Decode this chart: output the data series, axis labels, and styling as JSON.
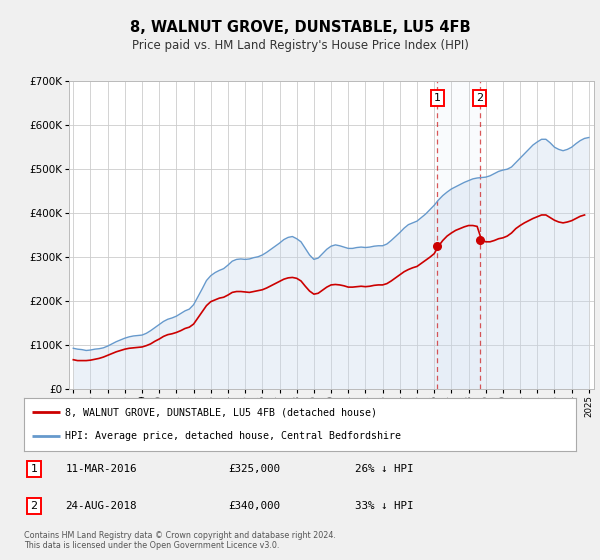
{
  "title": "8, WALNUT GROVE, DUNSTABLE, LU5 4FB",
  "subtitle": "Price paid vs. HM Land Registry's House Price Index (HPI)",
  "title_fontsize": 10.5,
  "subtitle_fontsize": 8.5,
  "background_color": "#f0f0f0",
  "plot_bg_color": "#ffffff",
  "grid_color": "#cccccc",
  "hpi_color": "#6699cc",
  "hpi_fill_color": "#c8d8ec",
  "price_color": "#cc0000",
  "ylim": [
    0,
    700000
  ],
  "yticks": [
    0,
    100000,
    200000,
    300000,
    400000,
    500000,
    600000,
    700000
  ],
  "ytick_labels": [
    "£0",
    "£100K",
    "£200K",
    "£300K",
    "£400K",
    "£500K",
    "£600K",
    "£700K"
  ],
  "sale1": {
    "date_num": 2016.19,
    "price": 325000,
    "label": "1",
    "date_str": "11-MAR-2016",
    "pct": "26%",
    "price_str": "£325,000"
  },
  "sale2": {
    "date_num": 2018.65,
    "price": 340000,
    "label": "2",
    "date_str": "24-AUG-2018",
    "pct": "33%",
    "price_str": "£340,000"
  },
  "legend_line1": "8, WALNUT GROVE, DUNSTABLE, LU5 4FB (detached house)",
  "legend_line2": "HPI: Average price, detached house, Central Bedfordshire",
  "footer1": "Contains HM Land Registry data © Crown copyright and database right 2024.",
  "footer2": "This data is licensed under the Open Government Licence v3.0.",
  "hpi_data": [
    [
      1995.0,
      93000
    ],
    [
      1995.25,
      91000
    ],
    [
      1995.5,
      90000
    ],
    [
      1995.75,
      88000
    ],
    [
      1996.0,
      89000
    ],
    [
      1996.25,
      91000
    ],
    [
      1996.5,
      92000
    ],
    [
      1996.75,
      94000
    ],
    [
      1997.0,
      98000
    ],
    [
      1997.25,
      103000
    ],
    [
      1997.5,
      108000
    ],
    [
      1997.75,
      112000
    ],
    [
      1998.0,
      116000
    ],
    [
      1998.25,
      119000
    ],
    [
      1998.5,
      121000
    ],
    [
      1998.75,
      122000
    ],
    [
      1999.0,
      123000
    ],
    [
      1999.25,
      127000
    ],
    [
      1999.5,
      133000
    ],
    [
      1999.75,
      140000
    ],
    [
      2000.0,
      147000
    ],
    [
      2000.25,
      154000
    ],
    [
      2000.5,
      159000
    ],
    [
      2000.75,
      162000
    ],
    [
      2001.0,
      166000
    ],
    [
      2001.25,
      172000
    ],
    [
      2001.5,
      178000
    ],
    [
      2001.75,
      182000
    ],
    [
      2002.0,
      192000
    ],
    [
      2002.25,
      210000
    ],
    [
      2002.5,
      228000
    ],
    [
      2002.75,
      247000
    ],
    [
      2003.0,
      258000
    ],
    [
      2003.25,
      265000
    ],
    [
      2003.5,
      270000
    ],
    [
      2003.75,
      274000
    ],
    [
      2004.0,
      282000
    ],
    [
      2004.25,
      291000
    ],
    [
      2004.5,
      295000
    ],
    [
      2004.75,
      296000
    ],
    [
      2005.0,
      295000
    ],
    [
      2005.25,
      296000
    ],
    [
      2005.5,
      299000
    ],
    [
      2005.75,
      301000
    ],
    [
      2006.0,
      305000
    ],
    [
      2006.25,
      311000
    ],
    [
      2006.5,
      318000
    ],
    [
      2006.75,
      325000
    ],
    [
      2007.0,
      332000
    ],
    [
      2007.25,
      340000
    ],
    [
      2007.5,
      345000
    ],
    [
      2007.75,
      347000
    ],
    [
      2008.0,
      342000
    ],
    [
      2008.25,
      335000
    ],
    [
      2008.5,
      320000
    ],
    [
      2008.75,
      305000
    ],
    [
      2009.0,
      295000
    ],
    [
      2009.25,
      298000
    ],
    [
      2009.5,
      308000
    ],
    [
      2009.75,
      318000
    ],
    [
      2010.0,
      325000
    ],
    [
      2010.25,
      328000
    ],
    [
      2010.5,
      326000
    ],
    [
      2010.75,
      323000
    ],
    [
      2011.0,
      320000
    ],
    [
      2011.25,
      320000
    ],
    [
      2011.5,
      322000
    ],
    [
      2011.75,
      323000
    ],
    [
      2012.0,
      322000
    ],
    [
      2012.25,
      323000
    ],
    [
      2012.5,
      325000
    ],
    [
      2012.75,
      326000
    ],
    [
      2013.0,
      326000
    ],
    [
      2013.25,
      330000
    ],
    [
      2013.5,
      338000
    ],
    [
      2013.75,
      347000
    ],
    [
      2014.0,
      356000
    ],
    [
      2014.25,
      366000
    ],
    [
      2014.5,
      374000
    ],
    [
      2014.75,
      378000
    ],
    [
      2015.0,
      382000
    ],
    [
      2015.25,
      390000
    ],
    [
      2015.5,
      398000
    ],
    [
      2015.75,
      408000
    ],
    [
      2016.0,
      418000
    ],
    [
      2016.25,
      430000
    ],
    [
      2016.5,
      440000
    ],
    [
      2016.75,
      448000
    ],
    [
      2017.0,
      455000
    ],
    [
      2017.25,
      460000
    ],
    [
      2017.5,
      465000
    ],
    [
      2017.75,
      470000
    ],
    [
      2018.0,
      474000
    ],
    [
      2018.25,
      478000
    ],
    [
      2018.5,
      480000
    ],
    [
      2018.75,
      481000
    ],
    [
      2019.0,
      482000
    ],
    [
      2019.25,
      485000
    ],
    [
      2019.5,
      490000
    ],
    [
      2019.75,
      495000
    ],
    [
      2020.0,
      498000
    ],
    [
      2020.25,
      500000
    ],
    [
      2020.5,
      505000
    ],
    [
      2020.75,
      515000
    ],
    [
      2021.0,
      525000
    ],
    [
      2021.25,
      535000
    ],
    [
      2021.5,
      545000
    ],
    [
      2021.75,
      555000
    ],
    [
      2022.0,
      562000
    ],
    [
      2022.25,
      568000
    ],
    [
      2022.5,
      568000
    ],
    [
      2022.75,
      560000
    ],
    [
      2023.0,
      550000
    ],
    [
      2023.25,
      545000
    ],
    [
      2023.5,
      542000
    ],
    [
      2023.75,
      545000
    ],
    [
      2024.0,
      550000
    ],
    [
      2024.25,
      558000
    ],
    [
      2024.5,
      565000
    ],
    [
      2024.75,
      570000
    ],
    [
      2025.0,
      572000
    ]
  ],
  "price_data": [
    [
      1995.0,
      67000
    ],
    [
      1995.25,
      65000
    ],
    [
      1995.5,
      65000
    ],
    [
      1995.75,
      65000
    ],
    [
      1996.0,
      66000
    ],
    [
      1996.25,
      68000
    ],
    [
      1996.5,
      70000
    ],
    [
      1996.75,
      73000
    ],
    [
      1997.0,
      77000
    ],
    [
      1997.25,
      81000
    ],
    [
      1997.5,
      85000
    ],
    [
      1997.75,
      88000
    ],
    [
      1998.0,
      91000
    ],
    [
      1998.25,
      93000
    ],
    [
      1998.5,
      94000
    ],
    [
      1998.75,
      95000
    ],
    [
      1999.0,
      96000
    ],
    [
      1999.25,
      99000
    ],
    [
      1999.5,
      103000
    ],
    [
      1999.75,
      109000
    ],
    [
      2000.0,
      114000
    ],
    [
      2000.25,
      120000
    ],
    [
      2000.5,
      124000
    ],
    [
      2000.75,
      126000
    ],
    [
      2001.0,
      129000
    ],
    [
      2001.25,
      133000
    ],
    [
      2001.5,
      138000
    ],
    [
      2001.75,
      141000
    ],
    [
      2002.0,
      148000
    ],
    [
      2002.25,
      162000
    ],
    [
      2002.5,
      176000
    ],
    [
      2002.75,
      190000
    ],
    [
      2003.0,
      199000
    ],
    [
      2003.25,
      203000
    ],
    [
      2003.5,
      207000
    ],
    [
      2003.75,
      209000
    ],
    [
      2004.0,
      214000
    ],
    [
      2004.25,
      220000
    ],
    [
      2004.5,
      222000
    ],
    [
      2004.75,
      222000
    ],
    [
      2005.0,
      221000
    ],
    [
      2005.25,
      220000
    ],
    [
      2005.5,
      222000
    ],
    [
      2005.75,
      224000
    ],
    [
      2006.0,
      226000
    ],
    [
      2006.25,
      230000
    ],
    [
      2006.5,
      235000
    ],
    [
      2006.75,
      240000
    ],
    [
      2007.0,
      245000
    ],
    [
      2007.25,
      250000
    ],
    [
      2007.5,
      253000
    ],
    [
      2007.75,
      254000
    ],
    [
      2008.0,
      252000
    ],
    [
      2008.25,
      246000
    ],
    [
      2008.5,
      234000
    ],
    [
      2008.75,
      223000
    ],
    [
      2009.0,
      216000
    ],
    [
      2009.25,
      218000
    ],
    [
      2009.5,
      225000
    ],
    [
      2009.75,
      232000
    ],
    [
      2010.0,
      237000
    ],
    [
      2010.25,
      238000
    ],
    [
      2010.5,
      237000
    ],
    [
      2010.75,
      235000
    ],
    [
      2011.0,
      232000
    ],
    [
      2011.25,
      232000
    ],
    [
      2011.5,
      233000
    ],
    [
      2011.75,
      234000
    ],
    [
      2012.0,
      233000
    ],
    [
      2012.25,
      234000
    ],
    [
      2012.5,
      236000
    ],
    [
      2012.75,
      237000
    ],
    [
      2013.0,
      237000
    ],
    [
      2013.25,
      240000
    ],
    [
      2013.5,
      246000
    ],
    [
      2013.75,
      253000
    ],
    [
      2014.0,
      260000
    ],
    [
      2014.25,
      267000
    ],
    [
      2014.5,
      272000
    ],
    [
      2014.75,
      276000
    ],
    [
      2015.0,
      279000
    ],
    [
      2015.25,
      286000
    ],
    [
      2015.5,
      293000
    ],
    [
      2015.75,
      300000
    ],
    [
      2016.0,
      308000
    ],
    [
      2016.25,
      325000
    ],
    [
      2016.5,
      338000
    ],
    [
      2016.75,
      348000
    ],
    [
      2017.0,
      355000
    ],
    [
      2017.25,
      361000
    ],
    [
      2017.5,
      365000
    ],
    [
      2017.75,
      369000
    ],
    [
      2018.0,
      372000
    ],
    [
      2018.25,
      372000
    ],
    [
      2018.5,
      370000
    ],
    [
      2018.75,
      340000
    ],
    [
      2019.0,
      335000
    ],
    [
      2019.25,
      335000
    ],
    [
      2019.5,
      338000
    ],
    [
      2019.75,
      342000
    ],
    [
      2020.0,
      344000
    ],
    [
      2020.25,
      348000
    ],
    [
      2020.5,
      355000
    ],
    [
      2020.75,
      365000
    ],
    [
      2021.0,
      372000
    ],
    [
      2021.25,
      378000
    ],
    [
      2021.5,
      383000
    ],
    [
      2021.75,
      388000
    ],
    [
      2022.0,
      392000
    ],
    [
      2022.25,
      396000
    ],
    [
      2022.5,
      396000
    ],
    [
      2022.75,
      390000
    ],
    [
      2023.0,
      384000
    ],
    [
      2023.25,
      380000
    ],
    [
      2023.5,
      378000
    ],
    [
      2023.75,
      380000
    ],
    [
      2024.0,
      383000
    ],
    [
      2024.25,
      388000
    ],
    [
      2024.5,
      393000
    ],
    [
      2024.75,
      396000
    ]
  ]
}
